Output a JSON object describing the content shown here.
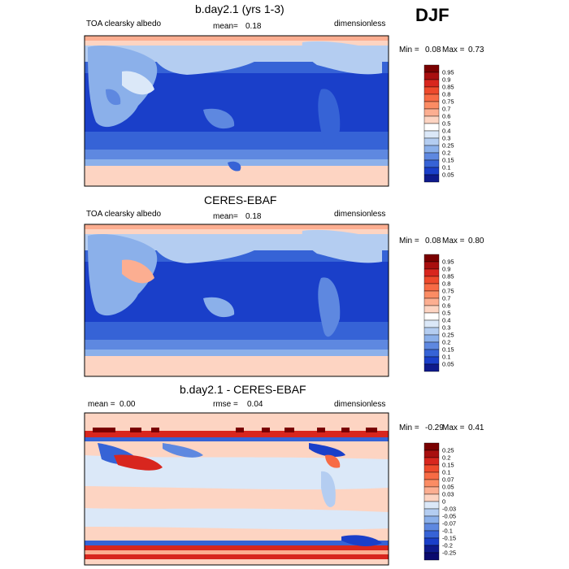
{
  "season": "DJF",
  "chart_data": [
    {
      "type": "heatmap",
      "title": "b.day2.1 (yrs 1-3)",
      "left_label": "TOA clearsky albedo",
      "mean_label": "mean=",
      "mean_value": "0.18",
      "units": "dimensionless",
      "min_label": "Min =",
      "min_value": "0.08",
      "max_label": "Max =",
      "max_value": "0.73",
      "colorbar": {
        "labels": [
          "0.95",
          "0.9",
          "0.85",
          "0.8",
          "0.75",
          "0.7",
          "0.6",
          "0.5",
          "0.4",
          "0.3",
          "0.25",
          "0.2",
          "0.15",
          "0.1",
          "0.05"
        ],
        "colors": [
          "#7a0000",
          "#a80f0f",
          "#d8261e",
          "#ee4a2c",
          "#f76b45",
          "#fb8c64",
          "#fcae91",
          "#fdd4c2",
          "#ffffff",
          "#dbe8f8",
          "#b4cdf1",
          "#8bb0ea",
          "#5e88e0",
          "#3663d6",
          "#1a3fc9",
          "#0e1a8c"
        ]
      }
    },
    {
      "type": "heatmap",
      "title": "CERES-EBAF",
      "left_label": "TOA clearsky albedo",
      "mean_label": "mean=",
      "mean_value": "0.18",
      "units": "dimensionless",
      "min_label": "Min =",
      "min_value": "0.08",
      "max_label": "Max =",
      "max_value": "0.80",
      "colorbar": {
        "labels": [
          "0.95",
          "0.9",
          "0.85",
          "0.8",
          "0.75",
          "0.7",
          "0.6",
          "0.5",
          "0.4",
          "0.3",
          "0.25",
          "0.2",
          "0.15",
          "0.1",
          "0.05"
        ],
        "colors": [
          "#7a0000",
          "#a80f0f",
          "#d8261e",
          "#ee4a2c",
          "#f76b45",
          "#fb8c64",
          "#fcae91",
          "#fdd4c2",
          "#ffffff",
          "#dbe8f8",
          "#b4cdf1",
          "#8bb0ea",
          "#5e88e0",
          "#3663d6",
          "#1a3fc9",
          "#0e1a8c"
        ]
      }
    },
    {
      "type": "heatmap",
      "title": "b.day2.1 - CERES-EBAF",
      "left_label": "mean =",
      "left_value": "0.00",
      "mean_label": "rmse =",
      "mean_value": "0.04",
      "units": "dimensionless",
      "min_label": "Min =",
      "min_value": "-0.29",
      "max_label": "Max =",
      "max_value": "0.41",
      "colorbar": {
        "labels": [
          "0.25",
          "0.2",
          "0.15",
          "0.1",
          "0.07",
          "0.05",
          "0.03",
          "0",
          "-0.03",
          "-0.05",
          "-0.07",
          "-0.1",
          "-0.15",
          "-0.2",
          "-0.25"
        ],
        "colors": [
          "#7a0000",
          "#a80f0f",
          "#d8261e",
          "#ee4a2c",
          "#f76b45",
          "#fb8c64",
          "#fcae91",
          "#fdd4c2",
          "#dbe8f8",
          "#b4cdf1",
          "#8bb0ea",
          "#5e88e0",
          "#3663d6",
          "#1a3fc9",
          "#0e1a8c",
          "#0a0a6e"
        ]
      }
    }
  ]
}
